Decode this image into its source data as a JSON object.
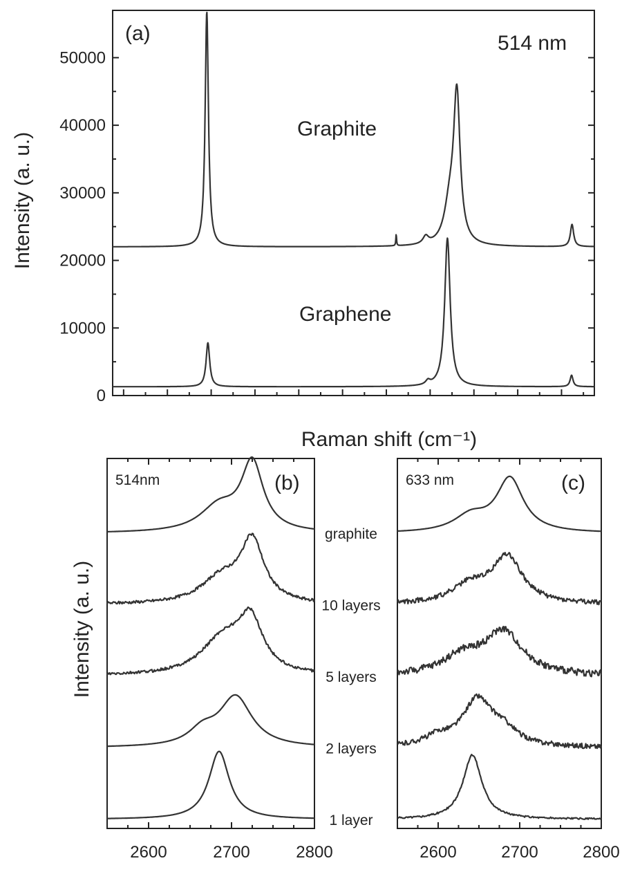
{
  "chart_data": [
    {
      "type": "line",
      "panel_label": "(a)",
      "annotation": "514 nm",
      "ylabel": "Intensity (a. u.)",
      "xlabel": "Raman shift (cm⁻¹)",
      "xlim": [
        1150,
        3350
      ],
      "ylim": [
        0,
        57000
      ],
      "yticks": [
        0,
        10000,
        20000,
        30000,
        40000,
        50000
      ],
      "xticks_visible": false,
      "series": [
        {
          "label": "Graphite",
          "baseline": 22000,
          "peaks": [
            {
              "x": 1580,
              "height": 34800,
              "width": 9
            },
            {
              "x": 2445,
              "height": 1700,
              "width": 2
            },
            {
              "x": 2580,
              "height": 1100,
              "width": 15
            },
            {
              "x": 2690,
              "height": 5500,
              "width": 30
            },
            {
              "x": 2722,
              "height": 21500,
              "width": 18
            },
            {
              "x": 3248,
              "height": 3300,
              "width": 9
            }
          ]
        },
        {
          "label": "Graphene",
          "baseline": 1300,
          "peaks": [
            {
              "x": 1585,
              "height": 6500,
              "width": 10
            },
            {
              "x": 2590,
              "height": 600,
              "width": 12
            },
            {
              "x": 2679,
              "height": 22000,
              "width": 15
            },
            {
              "x": 3246,
              "height": 1700,
              "width": 8
            }
          ]
        }
      ]
    },
    {
      "type": "line",
      "panel_label": "(b)",
      "annotation": "514nm",
      "ylabel": "Intensity (a. u.)",
      "xlim": [
        2550,
        2800
      ],
      "xticks": [
        2600,
        2700,
        2800
      ],
      "series": [
        {
          "label": "graphite",
          "baseline": 4.05,
          "noise": 0,
          "peaks": [
            {
              "x": 2725,
              "height": 0.95,
              "width": 16
            },
            {
              "x": 2685,
              "height": 0.35,
              "width": 28
            }
          ]
        },
        {
          "label": "10 layers",
          "baseline": 3.05,
          "noise": 0.02,
          "peaks": [
            {
              "x": 2725,
              "height": 0.85,
              "width": 17
            },
            {
              "x": 2688,
              "height": 0.35,
              "width": 30
            }
          ]
        },
        {
          "label": "5 layers",
          "baseline": 2.05,
          "noise": 0.02,
          "peaks": [
            {
              "x": 2723,
              "height": 0.7,
              "width": 18
            },
            {
              "x": 2690,
              "height": 0.5,
              "width": 32
            }
          ]
        },
        {
          "label": "2 layers",
          "baseline": 1.05,
          "noise": 0,
          "peaks": [
            {
              "x": 2705,
              "height": 0.7,
              "width": 24
            },
            {
              "x": 2665,
              "height": 0.2,
              "width": 20
            }
          ]
        },
        {
          "label": "1 layer",
          "baseline": 0.05,
          "noise": 0,
          "peaks": [
            {
              "x": 2685,
              "height": 0.95,
              "width": 15
            }
          ]
        }
      ]
    },
    {
      "type": "line",
      "panel_label": "(c)",
      "annotation": "633 nm",
      "xlim": [
        2550,
        2800
      ],
      "xticks": [
        2600,
        2700,
        2800
      ],
      "series": [
        {
          "label": "graphite",
          "baseline": 4.05,
          "noise": 0,
          "peaks": [
            {
              "x": 2688,
              "height": 0.75,
              "width": 20
            },
            {
              "x": 2640,
              "height": 0.22,
              "width": 25
            }
          ]
        },
        {
          "label": "10 layers",
          "baseline": 3.05,
          "noise": 0.035,
          "peaks": [
            {
              "x": 2685,
              "height": 0.65,
              "width": 22
            },
            {
              "x": 2640,
              "height": 0.25,
              "width": 28
            }
          ]
        },
        {
          "label": "5 layers",
          "baseline": 2.05,
          "noise": 0.05,
          "peaks": [
            {
              "x": 2680,
              "height": 0.6,
              "width": 28
            },
            {
              "x": 2630,
              "height": 0.25,
              "width": 30
            }
          ]
        },
        {
          "label": "2 layers",
          "baseline": 1.05,
          "noise": 0.035,
          "peaks": [
            {
              "x": 2648,
              "height": 0.65,
              "width": 22
            },
            {
              "x": 2600,
              "height": 0.12,
              "width": 20
            },
            {
              "x": 2680,
              "height": 0.2,
              "width": 20
            }
          ]
        },
        {
          "label": "1 layer",
          "baseline": 0.05,
          "noise": 0.012,
          "peaks": [
            {
              "x": 2642,
              "height": 0.9,
              "width": 14
            }
          ]
        }
      ]
    }
  ],
  "colors": {
    "line": "#333333",
    "axis": "#222222"
  }
}
